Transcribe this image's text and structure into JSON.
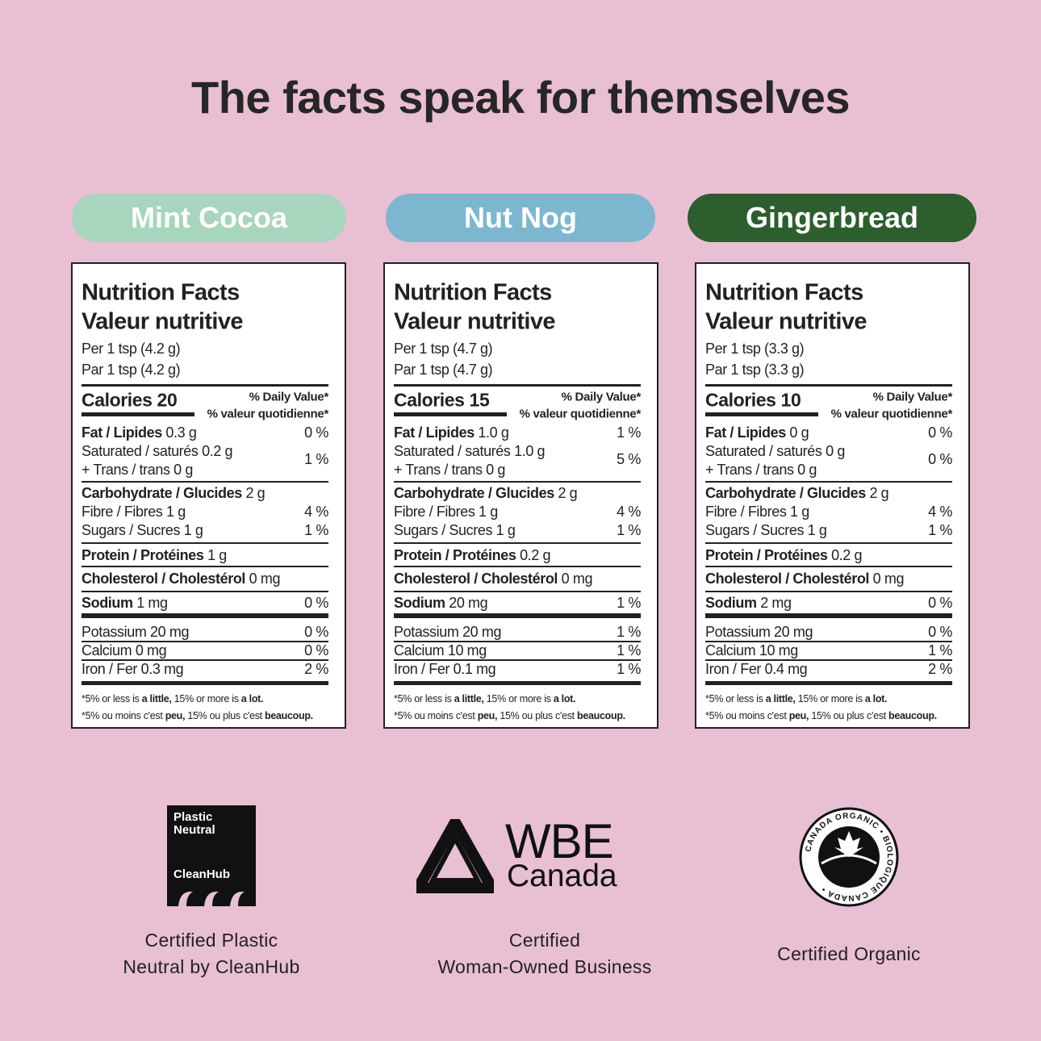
{
  "title": "The facts speak for themselves",
  "products": [
    {
      "name": "Mint Cocoa",
      "color": "#a8d5bd",
      "label": {
        "heading_en": "Nutrition Facts",
        "heading_fr": "Valeur nutritive",
        "serving_en": "Per 1 tsp (4.2 g)",
        "serving_fr": "Par 1 tsp (4.2 g)",
        "calories": "Calories 20",
        "dv_en": "% Daily Value*",
        "dv_fr": "% valeur quotidienne*",
        "fat": {
          "label": "Fat / Lipides",
          "amount": "0.3 g",
          "dv": "0 %"
        },
        "saturated": {
          "label": "Saturated / saturés",
          "amount": "0.2 g"
        },
        "trans": {
          "label": "+ Trans / trans",
          "amount": "0 g"
        },
        "sat_trans_dv": "1 %",
        "carb": {
          "label": "Carbohydrate / Glucides",
          "amount": "2 g"
        },
        "fibre": {
          "label": "Fibre / Fibres",
          "amount": "1 g",
          "dv": "4 %"
        },
        "sugars": {
          "label": "Sugars / Sucres",
          "amount": "1 g",
          "dv": "1 %"
        },
        "protein": {
          "label": "Protein / Protéines",
          "amount": "1 g"
        },
        "cholesterol": {
          "label": "Cholesterol / Cholestérol",
          "amount": "0 mg"
        },
        "sodium": {
          "label": "Sodium",
          "amount": "1 mg",
          "dv": "0 %"
        },
        "potassium": {
          "label": "Potassium",
          "amount": "20 mg",
          "dv": "0 %"
        },
        "calcium": {
          "label": "Calcium",
          "amount": "0 mg",
          "dv": "0 %"
        },
        "iron": {
          "label": "Iron / Fer",
          "amount": "0.3 mg",
          "dv": "2 %"
        }
      }
    },
    {
      "name": "Nut Nog",
      "color": "#7db7cf",
      "label": {
        "heading_en": "Nutrition Facts",
        "heading_fr": "Valeur nutritive",
        "serving_en": "Per 1 tsp (4.7 g)",
        "serving_fr": "Par 1 tsp (4.7 g)",
        "calories": "Calories 15",
        "dv_en": "% Daily Value*",
        "dv_fr": "% valeur quotidienne*",
        "fat": {
          "label": "Fat / Lipides",
          "amount": "1.0 g",
          "dv": "1 %"
        },
        "saturated": {
          "label": "Saturated / saturés",
          "amount": "1.0 g"
        },
        "trans": {
          "label": "+ Trans / trans",
          "amount": "0 g"
        },
        "sat_trans_dv": "5 %",
        "carb": {
          "label": "Carbohydrate / Glucides",
          "amount": "2 g"
        },
        "fibre": {
          "label": "Fibre / Fibres",
          "amount": "1 g",
          "dv": "4 %"
        },
        "sugars": {
          "label": "Sugars / Sucres",
          "amount": "1 g",
          "dv": "1 %"
        },
        "protein": {
          "label": "Protein / Protéines",
          "amount": "0.2 g"
        },
        "cholesterol": {
          "label": "Cholesterol / Cholestérol",
          "amount": "0 mg"
        },
        "sodium": {
          "label": "Sodium",
          "amount": "20 mg",
          "dv": "1 %"
        },
        "potassium": {
          "label": "Potassium",
          "amount": "20 mg",
          "dv": "1 %"
        },
        "calcium": {
          "label": "Calcium",
          "amount": "10 mg",
          "dv": "1 %"
        },
        "iron": {
          "label": "Iron / Fer",
          "amount": "0.1 mg",
          "dv": "1 %"
        }
      }
    },
    {
      "name": "Gingerbread",
      "color": "#2c5e2e",
      "label": {
        "heading_en": "Nutrition Facts",
        "heading_fr": "Valeur nutritive",
        "serving_en": "Per 1 tsp (3.3 g)",
        "serving_fr": "Par 1 tsp (3.3 g)",
        "calories": "Calories 10",
        "dv_en": "% Daily Value*",
        "dv_fr": "% valeur quotidienne*",
        "fat": {
          "label": "Fat / Lipides",
          "amount": "0 g",
          "dv": "0 %"
        },
        "saturated": {
          "label": "Saturated / saturés",
          "amount": "0 g"
        },
        "trans": {
          "label": "+ Trans / trans",
          "amount": "0 g"
        },
        "sat_trans_dv": "0 %",
        "carb": {
          "label": "Carbohydrate / Glucides",
          "amount": "2 g"
        },
        "fibre": {
          "label": "Fibre / Fibres",
          "amount": "1 g",
          "dv": "4 %"
        },
        "sugars": {
          "label": "Sugars / Sucres",
          "amount": "1 g",
          "dv": "1 %"
        },
        "protein": {
          "label": "Protein / Protéines",
          "amount": "0.2 g"
        },
        "cholesterol": {
          "label": "Cholesterol / Cholestérol",
          "amount": "0 mg"
        },
        "sodium": {
          "label": "Sodium",
          "amount": "2 mg",
          "dv": "0 %"
        },
        "potassium": {
          "label": "Potassium",
          "amount": "20 mg",
          "dv": "0 %"
        },
        "calcium": {
          "label": "Calcium",
          "amount": "10 mg",
          "dv": "1 %"
        },
        "iron": {
          "label": "Iron / Fer",
          "amount": "0.4 mg",
          "dv": "2 %"
        }
      }
    }
  ],
  "footnote_en": {
    "a": "*5% or less is ",
    "b": "a little,",
    "c": " 15% or more is ",
    "d": "a lot."
  },
  "footnote_fr": {
    "a": "*5% ou moins c'est ",
    "b": "peu,",
    "c": " 15% ou plus c'est ",
    "d": "beaucoup."
  },
  "certifications": [
    {
      "logo_text": [
        "Plastic",
        "Neutral",
        "CleanHub"
      ],
      "caption": [
        "Certified Plastic",
        "Neutral by CleanHub"
      ],
      "icon": "cleanhub-wave-logo"
    },
    {
      "logo_text": [
        "WBE",
        "Canada"
      ],
      "caption": [
        "Certified",
        "Woman-Owned Business"
      ],
      "icon": "wbe-triangle-logo"
    },
    {
      "logo_text": [
        "CANADA ORGANIC • BIOLOGIQUE CANADA •"
      ],
      "caption": [
        "Certified Organic"
      ],
      "icon": "canada-organic-seal"
    }
  ]
}
